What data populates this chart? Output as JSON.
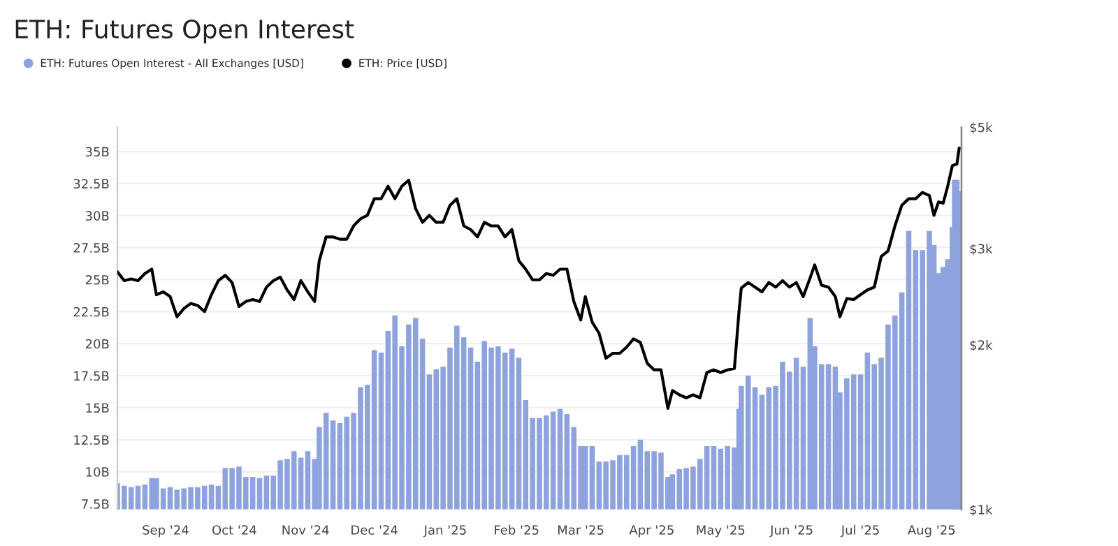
{
  "chart_data": {
    "type": "bar",
    "title": "ETH: Futures Open Interest",
    "x": [
      "2024-08-11",
      "2024-08-14",
      "2024-08-17",
      "2024-08-20",
      "2024-08-23",
      "2024-08-26",
      "2024-08-28",
      "2024-08-31",
      "2024-09-03",
      "2024-09-06",
      "2024-09-09",
      "2024-09-12",
      "2024-09-15",
      "2024-09-18",
      "2024-09-21",
      "2024-09-24",
      "2024-09-27",
      "2024-09-30",
      "2024-10-03",
      "2024-10-06",
      "2024-10-09",
      "2024-10-12",
      "2024-10-15",
      "2024-10-18",
      "2024-10-21",
      "2024-10-24",
      "2024-10-27",
      "2024-10-30",
      "2024-11-02",
      "2024-11-05",
      "2024-11-07",
      "2024-11-10",
      "2024-11-13",
      "2024-11-16",
      "2024-11-19",
      "2024-11-22",
      "2024-11-25",
      "2024-11-28",
      "2024-12-01",
      "2024-12-04",
      "2024-12-07",
      "2024-12-10",
      "2024-12-13",
      "2024-12-16",
      "2024-12-19",
      "2024-12-22",
      "2024-12-25",
      "2024-12-28",
      "2024-12-31",
      "2025-01-03",
      "2025-01-06",
      "2025-01-09",
      "2025-01-12",
      "2025-01-15",
      "2025-01-18",
      "2025-01-21",
      "2025-01-24",
      "2025-01-27",
      "2025-01-30",
      "2025-02-02",
      "2025-02-05",
      "2025-02-08",
      "2025-02-11",
      "2025-02-14",
      "2025-02-17",
      "2025-02-20",
      "2025-02-23",
      "2025-02-26",
      "2025-03-01",
      "2025-03-03",
      "2025-03-06",
      "2025-03-09",
      "2025-03-12",
      "2025-03-15",
      "2025-03-18",
      "2025-03-21",
      "2025-03-24",
      "2025-03-27",
      "2025-03-30",
      "2025-04-02",
      "2025-04-05",
      "2025-04-08",
      "2025-04-10",
      "2025-04-13",
      "2025-04-16",
      "2025-04-19",
      "2025-04-22",
      "2025-04-25",
      "2025-04-28",
      "2025-05-01",
      "2025-05-04",
      "2025-05-07",
      "2025-05-09",
      "2025-05-10",
      "2025-05-13",
      "2025-05-16",
      "2025-05-19",
      "2025-05-22",
      "2025-05-25",
      "2025-05-28",
      "2025-05-31",
      "2025-06-03",
      "2025-06-06",
      "2025-06-09",
      "2025-06-11",
      "2025-06-14",
      "2025-06-17",
      "2025-06-20",
      "2025-06-22",
      "2025-06-25",
      "2025-06-28",
      "2025-07-01",
      "2025-07-04",
      "2025-07-07",
      "2025-07-10",
      "2025-07-13",
      "2025-07-16",
      "2025-07-19",
      "2025-07-22",
      "2025-07-25",
      "2025-07-28",
      "2025-07-31",
      "2025-08-02",
      "2025-08-04",
      "2025-08-06",
      "2025-08-08",
      "2025-08-10",
      "2025-08-11",
      "2025-08-12",
      "2025-08-13"
    ],
    "series": [
      {
        "name": "ETH: Futures Open Interest - All Exchanges [USD]",
        "color": "#8ea2dd",
        "values": [
          9.1,
          8.9,
          8.8,
          8.9,
          9.0,
          9.5,
          9.5,
          8.7,
          8.8,
          8.6,
          8.7,
          8.8,
          8.8,
          8.9,
          9.0,
          8.9,
          10.3,
          10.3,
          10.4,
          9.6,
          9.6,
          9.5,
          9.7,
          9.7,
          10.9,
          11.0,
          11.6,
          11.1,
          11.6,
          11.0,
          13.5,
          14.6,
          14.0,
          13.8,
          14.3,
          14.6,
          16.6,
          16.8,
          19.5,
          19.3,
          21.0,
          22.2,
          19.8,
          21.5,
          22.0,
          20.4,
          17.6,
          18.0,
          18.2,
          19.7,
          21.4,
          20.5,
          19.7,
          18.6,
          20.2,
          19.7,
          19.8,
          19.3,
          19.6,
          18.9,
          15.6,
          14.2,
          14.2,
          14.4,
          14.7,
          14.9,
          14.5,
          13.5,
          12.0,
          12.0,
          12.0,
          10.8,
          10.8,
          10.9,
          11.3,
          11.3,
          12.0,
          12.5,
          11.6,
          11.6,
          11.5,
          9.6,
          9.8,
          10.2,
          10.3,
          10.4,
          11.0,
          12.0,
          12.0,
          11.8,
          12.0,
          11.9,
          14.9,
          16.7,
          17.5,
          16.6,
          16.0,
          16.6,
          16.7,
          18.6,
          17.8,
          18.9,
          18.2,
          22.0,
          19.8,
          18.4,
          18.4,
          18.2,
          16.2,
          17.3,
          17.6,
          17.6,
          19.3,
          18.4,
          18.9,
          21.5,
          22.2,
          24.0,
          28.8,
          27.3,
          27.3,
          28.8,
          27.7,
          25.5,
          26.0,
          26.6,
          29.1,
          32.8,
          32.8,
          31.9
        ]
      },
      {
        "name": "ETH: Price [USD]",
        "type": "line",
        "axis": "y2",
        "color": "#000000",
        "values": [
          2.72,
          2.62,
          2.64,
          2.62,
          2.7,
          2.75,
          2.47,
          2.5,
          2.45,
          2.25,
          2.33,
          2.38,
          2.36,
          2.3,
          2.47,
          2.62,
          2.68,
          2.6,
          2.35,
          2.4,
          2.42,
          2.4,
          2.55,
          2.62,
          2.66,
          2.52,
          2.42,
          2.62,
          2.5,
          2.4,
          2.85,
          3.15,
          3.15,
          3.12,
          3.12,
          3.3,
          3.4,
          3.45,
          3.7,
          3.7,
          3.9,
          3.7,
          3.9,
          4.0,
          3.55,
          3.35,
          3.45,
          3.35,
          3.35,
          3.6,
          3.7,
          3.3,
          3.25,
          3.15,
          3.35,
          3.3,
          3.3,
          3.15,
          3.25,
          2.85,
          2.75,
          2.63,
          2.63,
          2.7,
          2.68,
          2.75,
          2.75,
          2.4,
          2.22,
          2.45,
          2.2,
          2.1,
          1.89,
          1.93,
          1.93,
          1.98,
          2.05,
          2.02,
          1.85,
          1.8,
          1.8,
          1.53,
          1.65,
          1.62,
          1.6,
          1.62,
          1.6,
          1.78,
          1.8,
          1.78,
          1.8,
          1.81,
          2.3,
          2.54,
          2.6,
          2.55,
          2.5,
          2.6,
          2.55,
          2.62,
          2.55,
          2.6,
          2.45,
          2.65,
          2.8,
          2.57,
          2.55,
          2.45,
          2.25,
          2.43,
          2.42,
          2.47,
          2.52,
          2.55,
          2.9,
          2.97,
          3.3,
          3.6,
          3.7,
          3.7,
          3.8,
          3.75,
          3.45,
          3.65,
          3.63,
          3.9,
          4.25,
          4.27,
          4.28,
          4.58
        ]
      }
    ],
    "xlim": [
      "2024-08-11",
      "2025-08-14"
    ],
    "xticks": [
      {
        "value": "2024-09-01",
        "label": "Sep '24"
      },
      {
        "value": "2024-10-01",
        "label": "Oct '24"
      },
      {
        "value": "2024-11-01",
        "label": "Nov '24"
      },
      {
        "value": "2024-12-01",
        "label": "Dec '24"
      },
      {
        "value": "2025-01-01",
        "label": "Jan '25"
      },
      {
        "value": "2025-02-01",
        "label": "Feb '25"
      },
      {
        "value": "2025-03-01",
        "label": "Mar '25"
      },
      {
        "value": "2025-04-01",
        "label": "Apr '25"
      },
      {
        "value": "2025-05-01",
        "label": "May '25"
      },
      {
        "value": "2025-06-01",
        "label": "Jun '25"
      },
      {
        "value": "2025-07-01",
        "label": "Jul '25"
      },
      {
        "value": "2025-08-01",
        "label": "Aug '25"
      }
    ],
    "ylim": [
      7.06,
      36.9
    ],
    "yticks": [
      {
        "value": 7.5,
        "label": "7.5B"
      },
      {
        "value": 10,
        "label": "10B"
      },
      {
        "value": 12.5,
        "label": "12.5B"
      },
      {
        "value": 15,
        "label": "15B"
      },
      {
        "value": 17.5,
        "label": "17.5B"
      },
      {
        "value": 20,
        "label": "20B"
      },
      {
        "value": 22.5,
        "label": "22.5B"
      },
      {
        "value": 25,
        "label": "25B"
      },
      {
        "value": 27.5,
        "label": "27.5B"
      },
      {
        "value": 30,
        "label": "30B"
      },
      {
        "value": 32.5,
        "label": "32.5B"
      },
      {
        "value": 35,
        "label": "35B"
      }
    ],
    "log": "y2",
    "y2lim": [
      1,
      5
    ],
    "y2ticks": [
      {
        "value": 1,
        "label": "$1k"
      },
      {
        "value": 2,
        "label": "$2k"
      },
      {
        "value": 3,
        "label": "$3k"
      },
      {
        "value": 5,
        "label": "$5k"
      }
    ],
    "grid": "y",
    "legend": "top left"
  }
}
